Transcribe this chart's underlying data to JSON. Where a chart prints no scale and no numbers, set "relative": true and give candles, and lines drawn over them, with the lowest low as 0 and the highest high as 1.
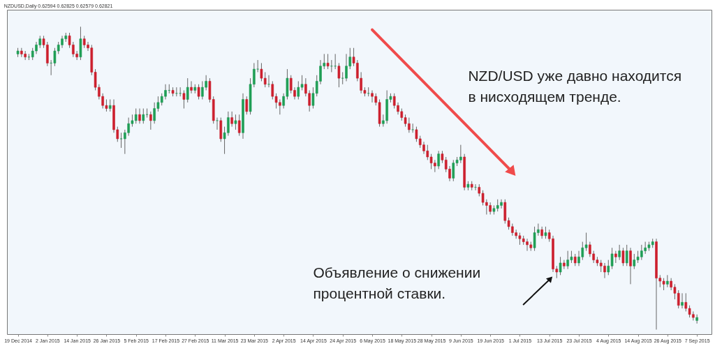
{
  "chart_data": {
    "type": "candlestick",
    "title": "NZDUSD,Daily 0.62594 0.62825 0.62579 0.62821",
    "relative": true,
    "annotations": [
      "NZD/USD уже давно находится в нисходящем тренде.",
      "Объявление о снижении процентной ставки."
    ],
    "categories": [
      "19 Dec 2014",
      null,
      null,
      null,
      null,
      null,
      null,
      null,
      "2 Jan 2015",
      null,
      null,
      null,
      null,
      null,
      null,
      null,
      "14 Jan 2015",
      null,
      null,
      null,
      null,
      null,
      null,
      null,
      "26 Jan 2015",
      null,
      null,
      null,
      null,
      null,
      null,
      null,
      "5 Feb 2015",
      null,
      null,
      null,
      null,
      null,
      null,
      null,
      "17 Feb 2015",
      null,
      null,
      null,
      null,
      null,
      null,
      null,
      "27 Feb 2015",
      null,
      null,
      null,
      null,
      null,
      null,
      null,
      "11 Mar 2015",
      null,
      null,
      null,
      null,
      null,
      null,
      null,
      "23 Mar 2015",
      null,
      null,
      null,
      null,
      null,
      null,
      null,
      "2 Apr 2015",
      null,
      null,
      null,
      null,
      null,
      null,
      null,
      "14 Apr 2015",
      null,
      null,
      null,
      null,
      null,
      null,
      null,
      "24 Apr 2015",
      null,
      null,
      null,
      null,
      null,
      null,
      null,
      "6 May 2015",
      null,
      null,
      null,
      null,
      null,
      null,
      null,
      "18 May 2015",
      null,
      null,
      null,
      null,
      null,
      null,
      null,
      "28 May 2015",
      null,
      null,
      null,
      null,
      null,
      null,
      null,
      "9 Jun 2015",
      null,
      null,
      null,
      null,
      null,
      null,
      null,
      "19 Jun 2015",
      null,
      null,
      null,
      null,
      null,
      null,
      null,
      "1 Jul 2015",
      null,
      null,
      null,
      null,
      null,
      null,
      null,
      "13 Jul 2015",
      null,
      null,
      null,
      null,
      null,
      null,
      null,
      "23 Jul 2015",
      null,
      null,
      null,
      null,
      null,
      null,
      null,
      "4 Aug 2015",
      null,
      null,
      null,
      null,
      null,
      null,
      null,
      "14 Aug 2015",
      null,
      null,
      null,
      null,
      null,
      null,
      null,
      "26 Aug 2015",
      null,
      null,
      null,
      null,
      null,
      null,
      null,
      "7 Sep 2015"
    ],
    "ohlc": [
      [
        0.91,
        0.93,
        0.9,
        0.92
      ],
      [
        0.92,
        0.93,
        0.9,
        0.91
      ],
      [
        0.91,
        0.92,
        0.89,
        0.9
      ],
      [
        0.9,
        0.91,
        0.89,
        0.9
      ],
      [
        0.9,
        0.93,
        0.89,
        0.92
      ],
      [
        0.92,
        0.95,
        0.91,
        0.94
      ],
      [
        0.94,
        0.97,
        0.93,
        0.96
      ],
      [
        0.96,
        0.97,
        0.93,
        0.94
      ],
      [
        0.94,
        0.95,
        0.87,
        0.88
      ],
      [
        0.88,
        0.89,
        0.84,
        0.88
      ],
      [
        0.88,
        0.93,
        0.87,
        0.92
      ],
      [
        0.92,
        0.95,
        0.91,
        0.94
      ],
      [
        0.94,
        0.97,
        0.93,
        0.96
      ],
      [
        0.96,
        0.98,
        0.95,
        0.97
      ],
      [
        0.97,
        0.98,
        0.93,
        0.94
      ],
      [
        0.94,
        0.95,
        0.9,
        0.91
      ],
      [
        0.91,
        0.92,
        0.89,
        0.9
      ],
      [
        0.9,
        1,
        0.89,
        0.96
      ],
      [
        0.96,
        0.97,
        0.93,
        0.94
      ],
      [
        0.94,
        0.95,
        0.92,
        0.93
      ],
      [
        0.93,
        0.94,
        0.84,
        0.85
      ],
      [
        0.85,
        0.86,
        0.79,
        0.8
      ],
      [
        0.8,
        0.81,
        0.76,
        0.77
      ],
      [
        0.77,
        0.78,
        0.73,
        0.74
      ],
      [
        0.74,
        0.76,
        0.72,
        0.73
      ],
      [
        0.73,
        0.76,
        0.72,
        0.74
      ],
      [
        0.74,
        0.76,
        0.65,
        0.66
      ],
      [
        0.66,
        0.67,
        0.62,
        0.63
      ],
      [
        0.63,
        0.65,
        0.6,
        0.63
      ],
      [
        0.63,
        0.66,
        0.58,
        0.65
      ],
      [
        0.65,
        0.7,
        0.64,
        0.68
      ],
      [
        0.68,
        0.71,
        0.67,
        0.69
      ],
      [
        0.69,
        0.73,
        0.68,
        0.71
      ],
      [
        0.71,
        0.73,
        0.68,
        0.69
      ],
      [
        0.69,
        0.73,
        0.68,
        0.71
      ],
      [
        0.71,
        0.73,
        0.7,
        0.71
      ],
      [
        0.71,
        0.72,
        0.66,
        0.69
      ],
      [
        0.69,
        0.75,
        0.68,
        0.73
      ],
      [
        0.73,
        0.77,
        0.72,
        0.75
      ],
      [
        0.75,
        0.78,
        0.74,
        0.77
      ],
      [
        0.77,
        0.81,
        0.76,
        0.79
      ],
      [
        0.79,
        0.81,
        0.78,
        0.79
      ],
      [
        0.79,
        0.8,
        0.77,
        0.78
      ],
      [
        0.78,
        0.8,
        0.77,
        0.78
      ],
      [
        0.78,
        0.8,
        0.77,
        0.78
      ],
      [
        0.78,
        0.79,
        0.73,
        0.76
      ],
      [
        0.76,
        0.83,
        0.75,
        0.8
      ],
      [
        0.8,
        0.82,
        0.78,
        0.79
      ],
      [
        0.79,
        0.81,
        0.78,
        0.8
      ],
      [
        0.8,
        0.81,
        0.76,
        0.77
      ],
      [
        0.77,
        0.82,
        0.76,
        0.8
      ],
      [
        0.8,
        0.84,
        0.79,
        0.82
      ],
      [
        0.82,
        0.83,
        0.75,
        0.76
      ],
      [
        0.76,
        0.77,
        0.68,
        0.69
      ],
      [
        0.69,
        0.7,
        0.66,
        0.69
      ],
      [
        0.69,
        0.7,
        0.62,
        0.63
      ],
      [
        0.63,
        0.67,
        0.58,
        0.65
      ],
      [
        0.65,
        0.72,
        0.64,
        0.7
      ],
      [
        0.7,
        0.72,
        0.67,
        0.68
      ],
      [
        0.68,
        0.71,
        0.66,
        0.69
      ],
      [
        0.69,
        0.71,
        0.64,
        0.65
      ],
      [
        0.65,
        0.78,
        0.63,
        0.76
      ],
      [
        0.76,
        0.77,
        0.71,
        0.72
      ],
      [
        0.72,
        0.83,
        0.71,
        0.81
      ],
      [
        0.81,
        0.88,
        0.8,
        0.86
      ],
      [
        0.86,
        0.89,
        0.85,
        0.86
      ],
      [
        0.86,
        0.88,
        0.82,
        0.83
      ],
      [
        0.83,
        0.85,
        0.8,
        0.81
      ],
      [
        0.81,
        0.84,
        0.8,
        0.81
      ],
      [
        0.81,
        0.82,
        0.76,
        0.77
      ],
      [
        0.77,
        0.78,
        0.73,
        0.75
      ],
      [
        0.75,
        0.76,
        0.71,
        0.74
      ],
      [
        0.74,
        0.78,
        0.73,
        0.77
      ],
      [
        0.77,
        0.86,
        0.76,
        0.83
      ],
      [
        0.83,
        0.84,
        0.78,
        0.79
      ],
      [
        0.79,
        0.8,
        0.76,
        0.77
      ],
      [
        0.77,
        0.82,
        0.76,
        0.8
      ],
      [
        0.8,
        0.84,
        0.79,
        0.81
      ],
      [
        0.81,
        0.83,
        0.77,
        0.78
      ],
      [
        0.78,
        0.79,
        0.72,
        0.74
      ],
      [
        0.74,
        0.8,
        0.73,
        0.78
      ],
      [
        0.78,
        0.84,
        0.77,
        0.82
      ],
      [
        0.82,
        0.89,
        0.81,
        0.87
      ],
      [
        0.87,
        0.91,
        0.86,
        0.88
      ],
      [
        0.88,
        0.91,
        0.86,
        0.87
      ],
      [
        0.87,
        0.89,
        0.85,
        0.87
      ],
      [
        0.87,
        0.91,
        0.86,
        0.87
      ],
      [
        0.87,
        0.88,
        0.8,
        0.83
      ],
      [
        0.83,
        0.85,
        0.81,
        0.83
      ],
      [
        0.83,
        0.91,
        0.82,
        0.87
      ],
      [
        0.87,
        0.93,
        0.86,
        0.9
      ],
      [
        0.9,
        0.93,
        0.87,
        0.88
      ],
      [
        0.88,
        0.89,
        0.82,
        0.83
      ],
      [
        0.83,
        0.85,
        0.78,
        0.79
      ],
      [
        0.79,
        0.8,
        0.77,
        0.78
      ],
      [
        0.78,
        0.8,
        0.77,
        0.78
      ],
      [
        0.78,
        0.79,
        0.75,
        0.77
      ],
      [
        0.77,
        0.78,
        0.74,
        0.75
      ],
      [
        0.75,
        0.76,
        0.67,
        0.68
      ],
      [
        0.68,
        0.71,
        0.67,
        0.69
      ],
      [
        0.69,
        0.79,
        0.68,
        0.76
      ],
      [
        0.76,
        0.78,
        0.75,
        0.77
      ],
      [
        0.77,
        0.78,
        0.73,
        0.74
      ],
      [
        0.74,
        0.75,
        0.71,
        0.72
      ],
      [
        0.72,
        0.73,
        0.69,
        0.7
      ],
      [
        0.7,
        0.71,
        0.67,
        0.68
      ],
      [
        0.68,
        0.7,
        0.65,
        0.66
      ],
      [
        0.66,
        0.68,
        0.65,
        0.66
      ],
      [
        0.66,
        0.67,
        0.62,
        0.63
      ],
      [
        0.63,
        0.64,
        0.6,
        0.61
      ],
      [
        0.61,
        0.62,
        0.58,
        0.59
      ],
      [
        0.59,
        0.61,
        0.56,
        0.57
      ],
      [
        0.57,
        0.58,
        0.53,
        0.55
      ],
      [
        0.55,
        0.56,
        0.52,
        0.54
      ],
      [
        0.54,
        0.59,
        0.53,
        0.58
      ],
      [
        0.58,
        0.59,
        0.55,
        0.56
      ],
      [
        0.56,
        0.57,
        0.52,
        0.53
      ],
      [
        0.53,
        0.54,
        0.49,
        0.5
      ],
      [
        0.5,
        0.56,
        0.49,
        0.55
      ],
      [
        0.55,
        0.57,
        0.54,
        0.56
      ],
      [
        0.56,
        0.61,
        0.55,
        0.57
      ],
      [
        0.57,
        0.58,
        0.46,
        0.47
      ],
      [
        0.47,
        0.49,
        0.46,
        0.48
      ],
      [
        0.48,
        0.49,
        0.46,
        0.47
      ],
      [
        0.47,
        0.48,
        0.46,
        0.47
      ],
      [
        0.47,
        0.48,
        0.44,
        0.45
      ],
      [
        0.45,
        0.46,
        0.41,
        0.42
      ],
      [
        0.42,
        0.43,
        0.38,
        0.41
      ],
      [
        0.41,
        0.42,
        0.38,
        0.39
      ],
      [
        0.39,
        0.41,
        0.38,
        0.4
      ],
      [
        0.4,
        0.43,
        0.39,
        0.41
      ],
      [
        0.41,
        0.43,
        0.4,
        0.42
      ],
      [
        0.42,
        0.43,
        0.35,
        0.36
      ],
      [
        0.36,
        0.37,
        0.33,
        0.34
      ],
      [
        0.34,
        0.35,
        0.31,
        0.32
      ],
      [
        0.32,
        0.33,
        0.3,
        0.31
      ],
      [
        0.31,
        0.32,
        0.28,
        0.3
      ],
      [
        0.3,
        0.31,
        0.28,
        0.29
      ],
      [
        0.29,
        0.3,
        0.26,
        0.28
      ],
      [
        0.28,
        0.29,
        0.26,
        0.27
      ],
      [
        0.27,
        0.34,
        0.26,
        0.32
      ],
      [
        0.32,
        0.35,
        0.31,
        0.33
      ],
      [
        0.33,
        0.34,
        0.3,
        0.31
      ],
      [
        0.31,
        0.34,
        0.3,
        0.32
      ],
      [
        0.32,
        0.33,
        0.29,
        0.3
      ],
      [
        0.3,
        0.31,
        0.19,
        0.2
      ],
      [
        0.2,
        0.21,
        0.17,
        0.19
      ],
      [
        0.19,
        0.24,
        0.18,
        0.22
      ],
      [
        0.22,
        0.23,
        0.2,
        0.21
      ],
      [
        0.21,
        0.26,
        0.2,
        0.23
      ],
      [
        0.23,
        0.26,
        0.22,
        0.24
      ],
      [
        0.24,
        0.25,
        0.21,
        0.22
      ],
      [
        0.22,
        0.26,
        0.21,
        0.24
      ],
      [
        0.24,
        0.29,
        0.23,
        0.27
      ],
      [
        0.27,
        0.32,
        0.26,
        0.28
      ],
      [
        0.28,
        0.29,
        0.24,
        0.25
      ],
      [
        0.25,
        0.26,
        0.22,
        0.23
      ],
      [
        0.23,
        0.24,
        0.21,
        0.22
      ],
      [
        0.22,
        0.23,
        0.19,
        0.21
      ],
      [
        0.21,
        0.22,
        0.17,
        0.19
      ],
      [
        0.19,
        0.23,
        0.18,
        0.21
      ],
      [
        0.21,
        0.27,
        0.2,
        0.25
      ],
      [
        0.25,
        0.26,
        0.22,
        0.24
      ],
      [
        0.24,
        0.28,
        0.23,
        0.26
      ],
      [
        0.26,
        0.27,
        0.21,
        0.22
      ],
      [
        0.22,
        0.28,
        0.21,
        0.26
      ],
      [
        0.26,
        0.27,
        0.15,
        0.21
      ],
      [
        0.21,
        0.25,
        0.2,
        0.23
      ],
      [
        0.23,
        0.26,
        0.22,
        0.24
      ],
      [
        0.24,
        0.28,
        0.23,
        0.26
      ],
      [
        0.26,
        0.29,
        0.25,
        0.27
      ],
      [
        0.27,
        0.29,
        0.26,
        0.28
      ],
      [
        0.28,
        0.3,
        0.27,
        0.29
      ],
      [
        0.29,
        0.3,
        0,
        0.17
      ],
      [
        0.17,
        0.18,
        0.14,
        0.16
      ],
      [
        0.16,
        0.17,
        0.13,
        0.15
      ],
      [
        0.15,
        0.18,
        0.14,
        0.16
      ],
      [
        0.16,
        0.17,
        0.13,
        0.14
      ],
      [
        0.14,
        0.15,
        0.1,
        0.12
      ],
      [
        0.12,
        0.13,
        0.07,
        0.08
      ],
      [
        0.08,
        0.12,
        0.07,
        0.09
      ],
      [
        0.09,
        0.12,
        0.06,
        0.07
      ],
      [
        0.07,
        0.08,
        0.04,
        0.05
      ],
      [
        0.05,
        0.06,
        0.03,
        0.04
      ],
      [
        0.03,
        0.05,
        0.02,
        0.04
      ]
    ]
  }
}
